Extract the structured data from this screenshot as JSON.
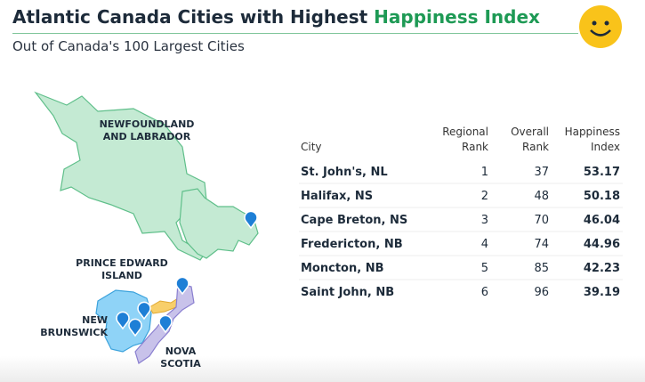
{
  "header": {
    "title": [
      "Atlantic Canada Cities with Highest ",
      "Happiness Index"
    ],
    "subtitle": "Out of Canada's 100 Largest Cities"
  },
  "map": {
    "labels": [
      [
        "NEWFOUNDLAND",
        "AND LABRADOR"
      ],
      [
        "PRINCE EDWARD",
        "ISLAND"
      ],
      [
        "NEW",
        "BRUNSWICK"
      ],
      [
        "NOVA",
        "SCOTIA"
      ]
    ]
  },
  "table": {
    "columns": [
      [
        "City"
      ],
      [
        "Regional",
        "Rank"
      ],
      [
        "Overall",
        "Rank"
      ],
      [
        "Happiness",
        "Index"
      ]
    ],
    "rows": [
      [
        "St. John's, NL",
        1,
        37,
        53.17
      ],
      [
        "Halifax, NS",
        2,
        48,
        50.18
      ],
      [
        "Cape Breton, NS",
        3,
        70,
        46.04
      ],
      [
        "Fredericton, NB",
        4,
        74,
        44.96
      ],
      [
        "Moncton, NB",
        5,
        85,
        42.23
      ],
      [
        "Saint John, NB",
        6,
        96,
        39.19
      ]
    ]
  }
}
